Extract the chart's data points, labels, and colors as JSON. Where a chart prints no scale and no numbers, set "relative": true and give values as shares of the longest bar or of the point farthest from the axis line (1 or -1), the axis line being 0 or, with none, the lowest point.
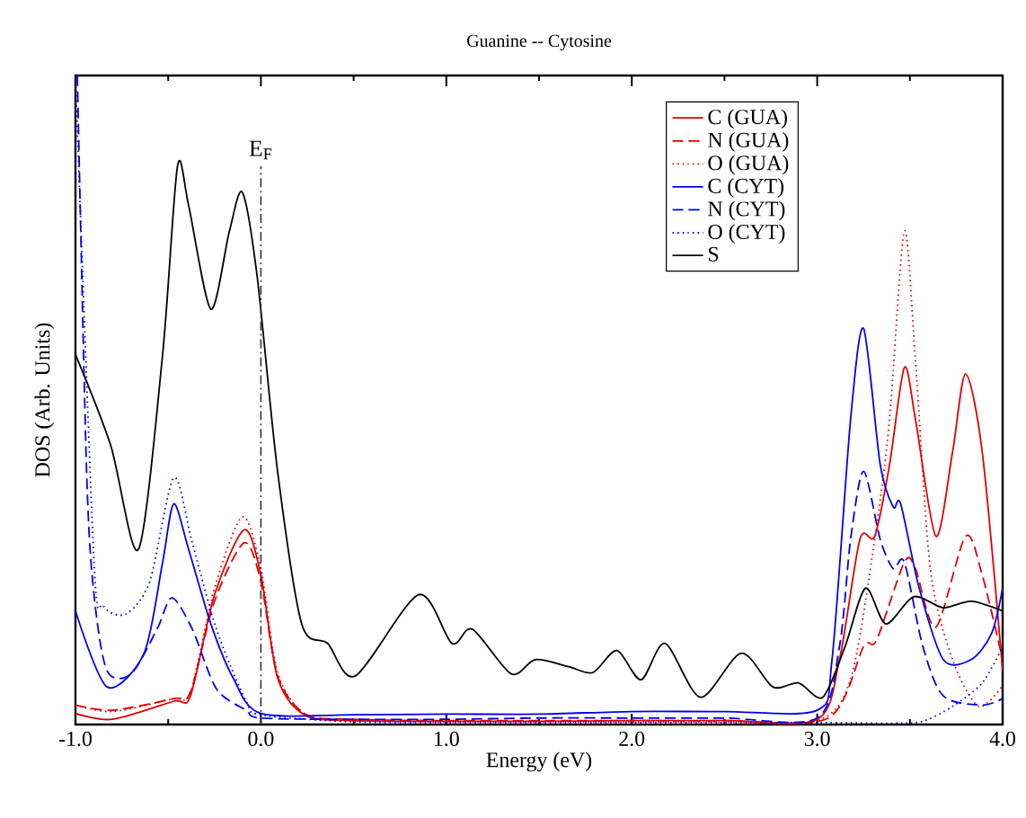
{
  "chart_data": {
    "type": "line",
    "title": "Guanine -- Cytosine",
    "xlabel": "Energy (eV)",
    "ylabel": "DOS (Arb. Units)",
    "relative": true,
    "legend": "top right",
    "xlim": [
      -1.0,
      4.0
    ],
    "xticks": [
      {
        "value": -1.0,
        "label": "-1.0"
      },
      {
        "value": 0.0,
        "label": "0.0"
      },
      {
        "value": 1.0,
        "label": "1.0"
      },
      {
        "value": 2.0,
        "label": "2.0"
      },
      {
        "value": 3.0,
        "label": "3.0"
      },
      {
        "value": 4.0,
        "label": "4.0"
      }
    ],
    "ref_lines": [
      {
        "axis": "x",
        "value": 0.0,
        "label": "E$_{F}$",
        "line_style": "dashdot",
        "color": "#333333"
      }
    ],
    "series": [
      {
        "name": "C (GUA)",
        "color": "#e00000",
        "line_style": "solid",
        "x": [
          -1.0,
          -0.8,
          -0.47,
          -0.38,
          -0.25,
          -0.09,
          0.0,
          0.09,
          0.24,
          0.5,
          1.0,
          1.5,
          2.0,
          2.5,
          3.0,
          3.12,
          3.23,
          3.31,
          3.39,
          3.47,
          3.53,
          3.64,
          3.73,
          3.8,
          3.89,
          4.0
        ],
        "values": [
          0.017,
          0.008,
          0.036,
          0.044,
          0.2,
          0.3,
          0.23,
          0.072,
          0.014,
          0.006,
          0.005,
          0.005,
          0.006,
          0.006,
          0.008,
          0.1,
          0.285,
          0.29,
          0.4,
          0.55,
          0.47,
          0.29,
          0.42,
          0.54,
          0.42,
          0.083
        ]
      },
      {
        "name": "N (GUA)",
        "color": "#e00000",
        "line_style": "dashed",
        "x": [
          -1.0,
          -0.8,
          -0.47,
          -0.38,
          -0.25,
          -0.09,
          0.0,
          0.09,
          0.24,
          0.5,
          1.0,
          1.5,
          2.0,
          2.5,
          3.06,
          3.25,
          3.32,
          3.47,
          3.53,
          3.64,
          3.8,
          3.89,
          4.0
        ],
        "values": [
          0.03,
          0.022,
          0.04,
          0.05,
          0.19,
          0.28,
          0.22,
          0.075,
          0.016,
          0.008,
          0.006,
          0.006,
          0.006,
          0.006,
          0.01,
          0.12,
          0.13,
          0.25,
          0.24,
          0.15,
          0.29,
          0.23,
          0.1
        ]
      },
      {
        "name": "O (GUA)",
        "color": "#e00000",
        "line_style": "dotted",
        "x": [
          -1.0,
          -0.8,
          -0.47,
          -0.38,
          -0.25,
          -0.1,
          0.0,
          0.09,
          0.24,
          0.5,
          1.0,
          1.5,
          2.0,
          2.5,
          3.0,
          3.18,
          3.31,
          3.39,
          3.47,
          3.53,
          3.61,
          3.73,
          3.87,
          4.0
        ],
        "values": [
          0.03,
          0.02,
          0.04,
          0.05,
          0.21,
          0.32,
          0.24,
          0.08,
          0.016,
          0.006,
          0.004,
          0.004,
          0.004,
          0.004,
          0.006,
          0.07,
          0.285,
          0.47,
          0.76,
          0.56,
          0.24,
          0.1,
          0.028,
          0.06
        ]
      },
      {
        "name": "C (CYT)",
        "color": "#0000ee",
        "line_style": "solid",
        "x": [
          -1.0,
          -0.83,
          -0.63,
          -0.53,
          -0.47,
          -0.39,
          -0.27,
          -0.15,
          0.0,
          0.5,
          1.0,
          1.5,
          2.0,
          2.5,
          3.0,
          3.08,
          3.18,
          3.25,
          3.34,
          3.41,
          3.45,
          3.55,
          3.68,
          3.83,
          3.94,
          4.0
        ],
        "values": [
          0.175,
          0.058,
          0.11,
          0.25,
          0.34,
          0.27,
          0.155,
          0.072,
          0.017,
          0.015,
          0.016,
          0.016,
          0.02,
          0.02,
          0.022,
          0.1,
          0.47,
          0.61,
          0.4,
          0.335,
          0.34,
          0.21,
          0.1,
          0.1,
          0.14,
          0.21
        ]
      },
      {
        "name": "N (CYT)",
        "color": "#0000ee",
        "line_style": "dashed",
        "x": [
          -0.99,
          -0.94,
          -0.9,
          -0.83,
          -0.7,
          -0.56,
          -0.48,
          -0.37,
          -0.24,
          -0.08,
          0.0,
          0.5,
          1.0,
          1.5,
          2.0,
          2.5,
          3.0,
          3.12,
          3.18,
          3.25,
          3.34,
          3.41,
          3.47,
          3.57,
          3.68,
          3.89,
          4.0
        ],
        "values": [
          1.0,
          0.39,
          0.2,
          0.083,
          0.078,
          0.147,
          0.195,
          0.147,
          0.055,
          0.022,
          0.01,
          0.008,
          0.008,
          0.01,
          0.01,
          0.01,
          0.01,
          0.12,
          0.285,
          0.39,
          0.285,
          0.24,
          0.25,
          0.12,
          0.044,
          0.03,
          0.04
        ]
      },
      {
        "name": "O (CYT)",
        "color": "#0000ee",
        "line_style": "dotted",
        "x": [
          -1.0,
          -0.9,
          -0.85,
          -0.73,
          -0.6,
          -0.47,
          -0.37,
          -0.24,
          -0.08,
          0.0,
          0.5,
          1.0,
          1.5,
          2.0,
          2.5,
          3.0,
          3.41,
          3.57,
          3.73,
          3.89,
          4.0
        ],
        "values": [
          1.0,
          0.25,
          0.183,
          0.17,
          0.22,
          0.38,
          0.28,
          0.147,
          0.036,
          0.015,
          0.004,
          0.003,
          0.003,
          0.003,
          0.003,
          0.003,
          0.002,
          0.005,
          0.028,
          0.064,
          0.12
        ]
      },
      {
        "name": "S",
        "color": "#000000",
        "line_style": "solid",
        "x": [
          -1.0,
          -0.81,
          -0.66,
          -0.53,
          -0.45,
          -0.39,
          -0.27,
          -0.17,
          -0.1,
          -0.02,
          0.09,
          0.22,
          0.36,
          0.51,
          0.85,
          1.03,
          1.14,
          1.35,
          1.48,
          1.66,
          1.79,
          1.92,
          2.05,
          2.18,
          2.37,
          2.59,
          2.76,
          2.9,
          3.03,
          3.15,
          3.26,
          3.37,
          3.52,
          3.68,
          3.83,
          4.0
        ],
        "values": [
          0.57,
          0.43,
          0.27,
          0.57,
          0.86,
          0.8,
          0.64,
          0.76,
          0.82,
          0.69,
          0.39,
          0.155,
          0.125,
          0.075,
          0.2,
          0.125,
          0.147,
          0.078,
          0.1,
          0.089,
          0.08,
          0.114,
          0.069,
          0.125,
          0.042,
          0.11,
          0.058,
          0.064,
          0.042,
          0.12,
          0.21,
          0.155,
          0.197,
          0.18,
          0.19,
          0.175
        ]
      }
    ]
  }
}
